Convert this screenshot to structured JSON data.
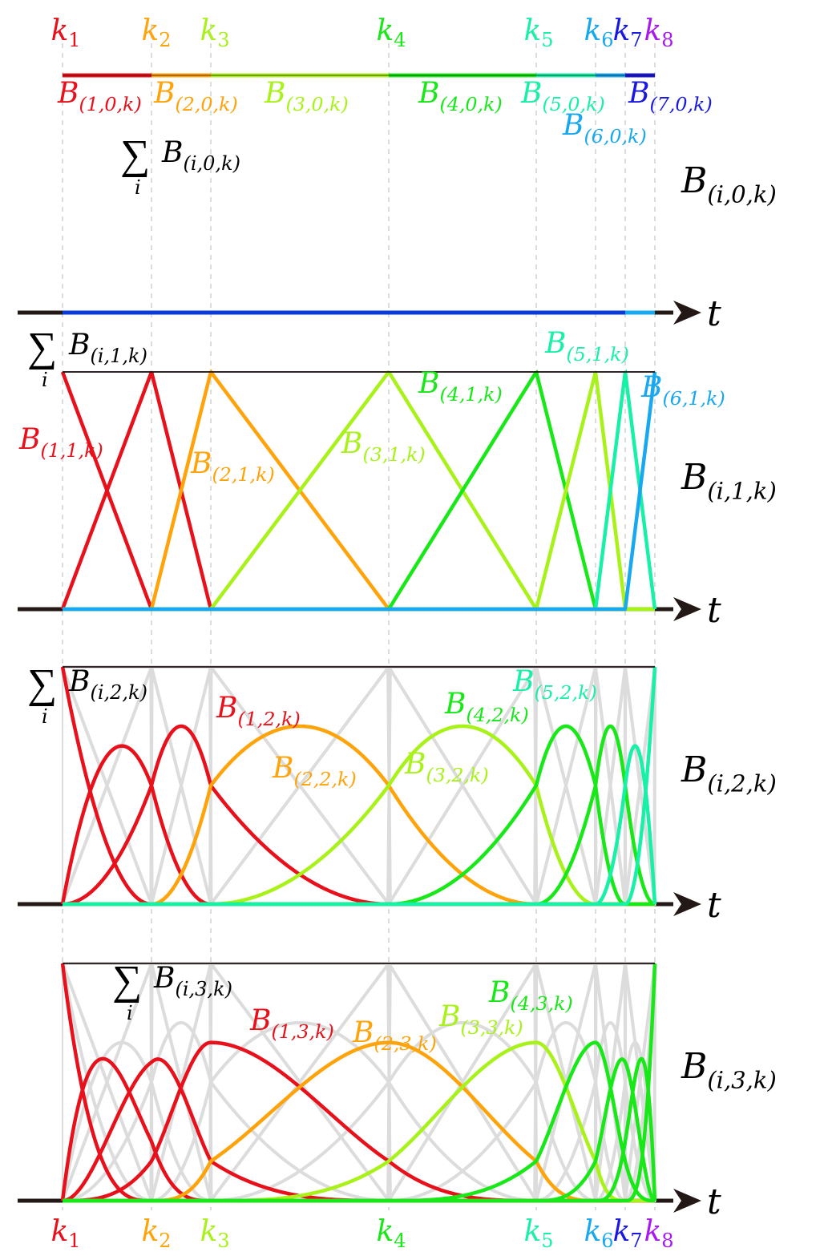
{
  "colors": {
    "k1": "#e8101a",
    "k2": "#ffa30a",
    "k3": "#a8f21a",
    "k4": "#18e818",
    "k5": "#18f0a8",
    "k6": "#18a8f0",
    "k7": "#1818e0",
    "k8": "#a818f0",
    "grid": "#dcdcdc",
    "axis": "#231815",
    "sum": "#1a0f0f",
    "b0_sum": "#0a3ad8",
    "b0_tail": "#18a8f0"
  },
  "knots": {
    "symbol": "k",
    "indices": [
      "1",
      "2",
      "3",
      "4",
      "5",
      "6",
      "7",
      "8"
    ]
  },
  "axis_label": "t",
  "sum_symbol": "∑",
  "sum_index": "i",
  "basis_symbol": "B",
  "panels": [
    {
      "name": "degree-0",
      "row_label": "(i,0,k)",
      "sum_label": "(i,0,k)",
      "curve_labels": [
        "(1,0,k)",
        "(2,0,k)",
        "(3,0,k)",
        "(4,0,k)",
        "(5,0,k)",
        "(6,0,k)",
        "(7,0,k)"
      ]
    },
    {
      "name": "degree-1",
      "row_label": "(i,1,k)",
      "sum_label": "(i,1,k)",
      "curve_labels": [
        "(1,1,k)",
        "(2,1,k)",
        "(3,1,k)",
        "(4,1,k)",
        "(5,1,k)",
        "(6,1,k)"
      ]
    },
    {
      "name": "degree-2",
      "row_label": "(i,2,k)",
      "sum_label": "(i,2,k)",
      "curve_labels": [
        "(1,2,k)",
        "(2,2,k)",
        "(3,2,k)",
        "(4,2,k)",
        "(5,2,k)"
      ]
    },
    {
      "name": "degree-3",
      "row_label": "(i,3,k)",
      "sum_label": "(i,3,k)",
      "curve_labels": [
        "(1,3,k)",
        "(2,3,k)",
        "(3,3,k)",
        "(4,3,k)"
      ]
    }
  ]
}
